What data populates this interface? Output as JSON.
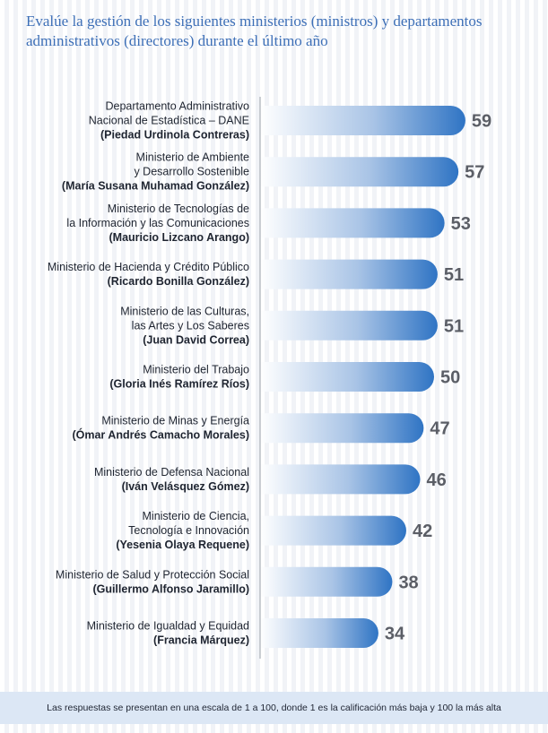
{
  "chart_data": {
    "type": "bar",
    "orientation": "horizontal",
    "title": "Evalúe la gestión de los siguientes ministerios (ministros) y departamentos administrativos (directores) durante el último año",
    "categories": [
      {
        "name": [
          "Departamento Administrativo",
          "Nacional de Estadística – DANE"
        ],
        "person": "(Piedad Urdinola Contreras)"
      },
      {
        "name": [
          "Ministerio de Ambiente",
          "y Desarrollo Sostenible"
        ],
        "person": "(María Susana Muhamad González)"
      },
      {
        "name": [
          "Ministerio de Tecnologías de",
          "la Información y las Comunicaciones"
        ],
        "person": "(Mauricio Lizcano Arango)"
      },
      {
        "name": [
          "Ministerio de Hacienda y Crédito Público"
        ],
        "person": "(Ricardo Bonilla González)"
      },
      {
        "name": [
          "Ministerio de las Culturas,",
          "las Artes y Los Saberes"
        ],
        "person": "(Juan David Correa)"
      },
      {
        "name": [
          "Ministerio del Trabajo"
        ],
        "person": "(Gloria Inés Ramírez Ríos)"
      },
      {
        "name": [
          "Ministerio de Minas y Energía"
        ],
        "person": "(Ómar Andrés Camacho Morales)"
      },
      {
        "name": [
          "Ministerio de Defensa Nacional"
        ],
        "person": "(Iván Velásquez Gómez)"
      },
      {
        "name": [
          "Ministerio de Ciencia,",
          "Tecnología e Innovación"
        ],
        "person": "(Yesenia Olaya Requene)"
      },
      {
        "name": [
          "Ministerio de Salud y Protección Social"
        ],
        "person": "(Guillermo Alfonso Jaramillo)"
      },
      {
        "name": [
          "Ministerio de Igualdad y Equidad"
        ],
        "person": "(Francia Márquez)"
      }
    ],
    "values": [
      59,
      57,
      53,
      51,
      51,
      50,
      47,
      46,
      42,
      38,
      34
    ],
    "xlim": [
      0,
      100
    ],
    "colors": {
      "bar_start": "#ffffff",
      "bar_end": "#2f74c4",
      "value_text": "#5b5e66",
      "label_text": "#1e2430",
      "axis": "#9aa0a8"
    }
  },
  "footnote": "Las respuestas se presentan en una escala de 1 a 100, donde 1 es la calificación más baja y 100 la más alta"
}
